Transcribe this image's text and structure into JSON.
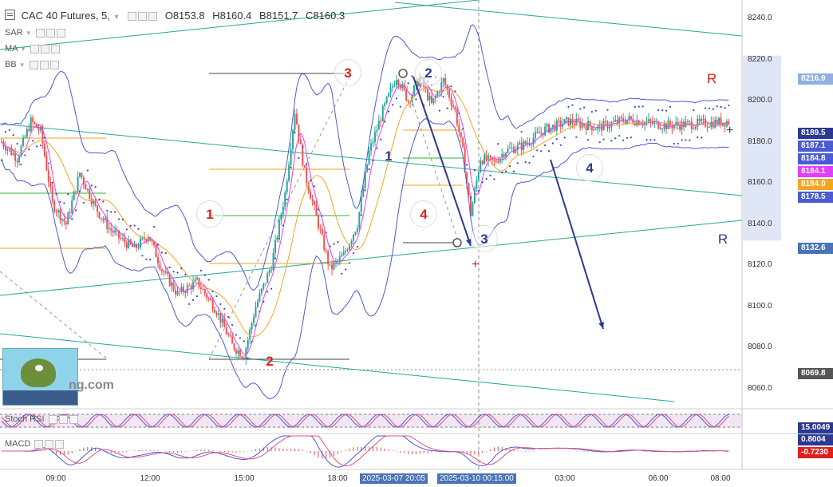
{
  "header": {
    "symbol": "CAC 40 Futures, 5,",
    "open": "O8153.8",
    "high": "H8160.4",
    "low": "B8151.7",
    "close": "C8160.3"
  },
  "indicators": [
    "SAR",
    "MA",
    "BB"
  ],
  "sub_panels": {
    "stoch": {
      "label": "Stoch RSI",
      "value": "15.0049"
    },
    "macd": {
      "label": "MACD",
      "value1": "0.8004",
      "value2": "-0.7230"
    }
  },
  "colors": {
    "candle_up": "#26a69a",
    "candle_down": "#ef5350",
    "band": "#4b5bd4",
    "trend_green": "#26a69a",
    "wave_arrow": "#2b3990",
    "wave_red": "#e02020",
    "sar": "#3246c8",
    "stoch_band": "#e9d6ee"
  },
  "price_labels": [
    {
      "value": "8216.9",
      "color": "#8fb1e0"
    },
    {
      "value": "8189.5",
      "color": "#2b3990"
    },
    {
      "value": "8187.1",
      "color": "#4b5bd4"
    },
    {
      "value": "8184.8",
      "color": "#4b5bd4"
    },
    {
      "value": "8184.1",
      "color": "#e040fb"
    },
    {
      "value": "8184.0",
      "color": "#f5a623"
    },
    {
      "value": "8178.5",
      "color": "#4b5bd4"
    },
    {
      "value": "8132.6",
      "color": "#4a74b5"
    },
    {
      "value": "8069.8",
      "color": "#555555"
    }
  ],
  "wave_labels": [
    {
      "text": "3",
      "color": "#e02020"
    },
    {
      "text": "2",
      "color": "#2b3990"
    },
    {
      "text": "1",
      "color": "#e02020"
    },
    {
      "text": "4",
      "color": "#e02020"
    },
    {
      "text": "1",
      "color": "#2b3990"
    },
    {
      "text": "3",
      "color": "#2b3990"
    },
    {
      "text": "4",
      "color": "#2b3990"
    },
    {
      "text": "2",
      "color": "#e02020"
    },
    {
      "text": "R",
      "color": "#e02020"
    },
    {
      "text": "R",
      "color": "#2b3990"
    }
  ],
  "watermark": "ng.com",
  "chart_data": {
    "type": "candlestick",
    "title": "CAC 40 Futures, 5,",
    "x_tick_labels": [
      "09:00",
      "12:00",
      "15:00",
      "18:00",
      "03:00",
      "06:00",
      "08:00"
    ],
    "x_flags": [
      "2025-03-07 20:05",
      "2025-03-10 00:15:00"
    ],
    "y_tick_labels": [
      "8240.0",
      "8220.0",
      "8200.0",
      "8180.0",
      "8160.0",
      "8140.0",
      "8120.0",
      "8100.0",
      "8080.0",
      "8060.0"
    ],
    "ylim": [
      8051,
      8249
    ],
    "path_price": [
      [
        0,
        8180
      ],
      [
        8,
        8172
      ],
      [
        15,
        8190
      ],
      [
        20,
        8185
      ],
      [
        26,
        8150
      ],
      [
        33,
        8140
      ],
      [
        40,
        8165
      ],
      [
        48,
        8148
      ],
      [
        55,
        8138
      ],
      [
        62,
        8132
      ],
      [
        68,
        8128
      ],
      [
        75,
        8135
      ],
      [
        82,
        8118
      ],
      [
        90,
        8106
      ],
      [
        100,
        8112
      ],
      [
        110,
        8098
      ],
      [
        118,
        8081
      ],
      [
        124,
        8076
      ],
      [
        130,
        8100
      ],
      [
        138,
        8120
      ],
      [
        145,
        8155
      ],
      [
        150,
        8195
      ],
      [
        155,
        8165
      ],
      [
        162,
        8140
      ],
      [
        168,
        8118
      ],
      [
        175,
        8125
      ],
      [
        182,
        8140
      ],
      [
        188,
        8175
      ],
      [
        195,
        8195
      ],
      [
        202,
        8212
      ],
      [
        208,
        8200
      ],
      [
        214,
        8211
      ],
      [
        220,
        8198
      ],
      [
        226,
        8210
      ],
      [
        232,
        8195
      ],
      [
        236,
        8175
      ],
      [
        240,
        8145
      ],
      [
        245,
        8172
      ],
      [
        252,
        8170
      ],
      [
        258,
        8176
      ],
      [
        266,
        8178
      ],
      [
        272,
        8182
      ],
      [
        278,
        8186
      ],
      [
        290,
        8190
      ],
      [
        305,
        8187
      ],
      [
        320,
        8191
      ],
      [
        340,
        8188
      ],
      [
        360,
        8189
      ],
      [
        372,
        8190
      ]
    ]
  }
}
